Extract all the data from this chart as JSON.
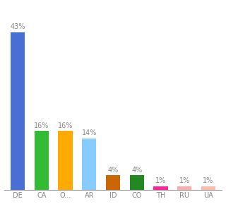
{
  "categories": [
    "DE",
    "CA",
    "O...",
    "AR",
    "ID",
    "CO",
    "TH",
    "RU",
    "UA"
  ],
  "values": [
    43,
    16,
    16,
    14,
    4,
    4,
    1,
    1,
    1
  ],
  "bar_colors": [
    "#4a6fd4",
    "#33bb33",
    "#ffaa00",
    "#88ccff",
    "#cc6600",
    "#228822",
    "#ff2299",
    "#ffaaaa",
    "#ffbbaa"
  ],
  "ylim": [
    0,
    50
  ],
  "bg_color": "#ffffff",
  "label_color": "#888888",
  "label_fontsize": 7,
  "tick_fontsize": 7
}
